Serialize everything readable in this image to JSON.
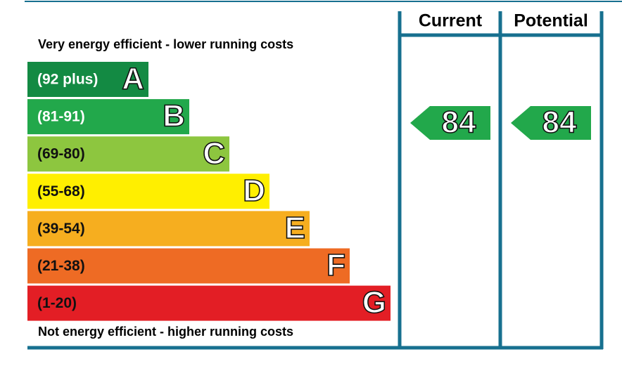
{
  "header": {
    "current": "Current",
    "potential": "Potential"
  },
  "top_note": "Very energy efficient - lower running costs",
  "bottom_note": "Not energy efficient - higher running costs",
  "bands": [
    {
      "range": "(92 plus)",
      "letter": "A",
      "color": "#138a43"
    },
    {
      "range": "(81-91)",
      "letter": "B",
      "color": "#22a84b"
    },
    {
      "range": "(69-80)",
      "letter": "C",
      "color": "#8dc63f"
    },
    {
      "range": "(55-68)",
      "letter": "D",
      "color": "#ffef00"
    },
    {
      "range": "(39-54)",
      "letter": "E",
      "color": "#f6ae1f"
    },
    {
      "range": "(21-38)",
      "letter": "F",
      "color": "#ee6b24"
    },
    {
      "range": "(1-20)",
      "letter": "G",
      "color": "#e31e25"
    }
  ],
  "current": {
    "value": 84,
    "color": "#22a84b"
  },
  "potential": {
    "value": 84,
    "color": "#22a84b"
  }
}
